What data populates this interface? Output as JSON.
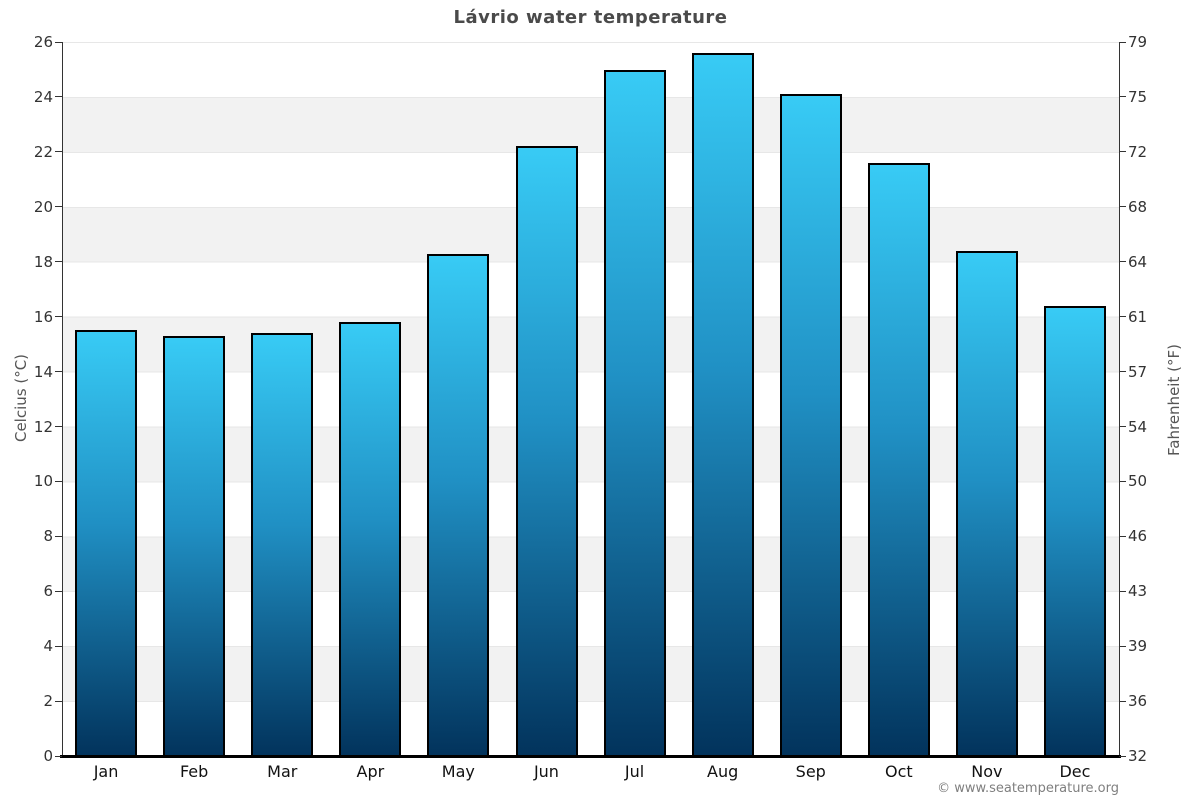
{
  "title": "Lávrio water temperature",
  "footer": {
    "copyright": "© www.seatemperature.org"
  },
  "axes": {
    "left_label": "Celcius (°C)",
    "right_label": "Fahrenheit (°F)"
  },
  "chart_data": {
    "type": "bar",
    "title": "Lávrio water temperature",
    "categories": [
      "Jan",
      "Feb",
      "Mar",
      "Apr",
      "May",
      "Jun",
      "Jul",
      "Aug",
      "Sep",
      "Oct",
      "Nov",
      "Dec"
    ],
    "values": [
      15.5,
      15.3,
      15.4,
      15.8,
      18.3,
      22.2,
      25.0,
      25.6,
      24.1,
      21.6,
      18.4,
      16.4
    ],
    "value_unit": "°C",
    "xlabel": "",
    "ylabel_left": "Celcius (°C)",
    "ylabel_right": "Fahrenheit (°F)",
    "ylim_left": [
      0,
      26
    ],
    "left_ticks": [
      0,
      2,
      4,
      6,
      8,
      10,
      12,
      14,
      16,
      18,
      20,
      22,
      24,
      26
    ],
    "right_tick_labels": [
      "32",
      "36",
      "39",
      "43",
      "46",
      "50",
      "54",
      "57",
      "61",
      "64",
      "68",
      "72",
      "75",
      "79"
    ],
    "legend": null,
    "grid": "horizontal-bands-every-2C",
    "band_color": "#f2f2f2",
    "band_line_color": "#e7e7e7",
    "bar_gradient_top": "#38cbf5",
    "bar_gradient_mid": "#2090c4",
    "bar_gradient_bottom": "#02335c",
    "bar_border_color": "#000000",
    "axis_line_color": "#333333",
    "baseline_color": "#000000",
    "title_color": "#4a4a4a"
  }
}
